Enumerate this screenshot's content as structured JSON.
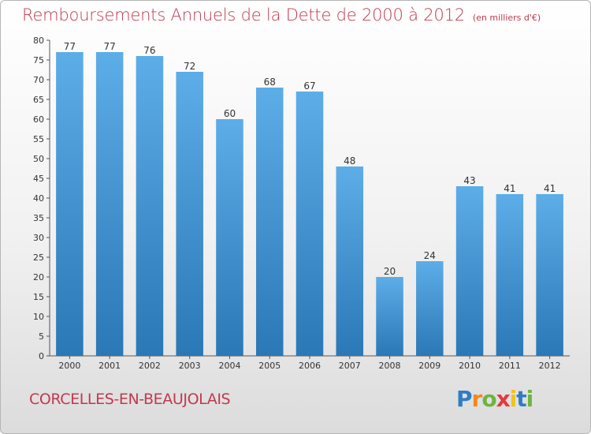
{
  "chart_data": {
    "type": "bar",
    "title": "Remboursements Annuels de la Dette de 2000 à 2012",
    "subtitle": "(en milliers d'€)",
    "categories": [
      "2000",
      "2001",
      "2002",
      "2003",
      "2004",
      "2005",
      "2006",
      "2007",
      "2008",
      "2009",
      "2010",
      "2011",
      "2012"
    ],
    "values": [
      77,
      77,
      76,
      72,
      60,
      68,
      67,
      48,
      20,
      24,
      43,
      41,
      41
    ],
    "ylim": [
      0,
      80
    ],
    "yticks": [
      0,
      5,
      10,
      15,
      20,
      25,
      30,
      35,
      40,
      45,
      50,
      55,
      60,
      65,
      70,
      75,
      80
    ],
    "grid": false,
    "bar_color_light": "#5dade8",
    "bar_color_dark": "#2a78b6"
  },
  "location": "CORCELLES-EN-BEAUJOLAIS",
  "logo": {
    "letters": [
      "P",
      "r",
      "o",
      "x",
      "i",
      "t",
      "i"
    ],
    "colors": [
      "#2e7dc4",
      "#f08a1c",
      "#6fb43f",
      "#e53a3a",
      "#f2c21a",
      "#2e7dc4",
      "#6fb43f"
    ]
  }
}
